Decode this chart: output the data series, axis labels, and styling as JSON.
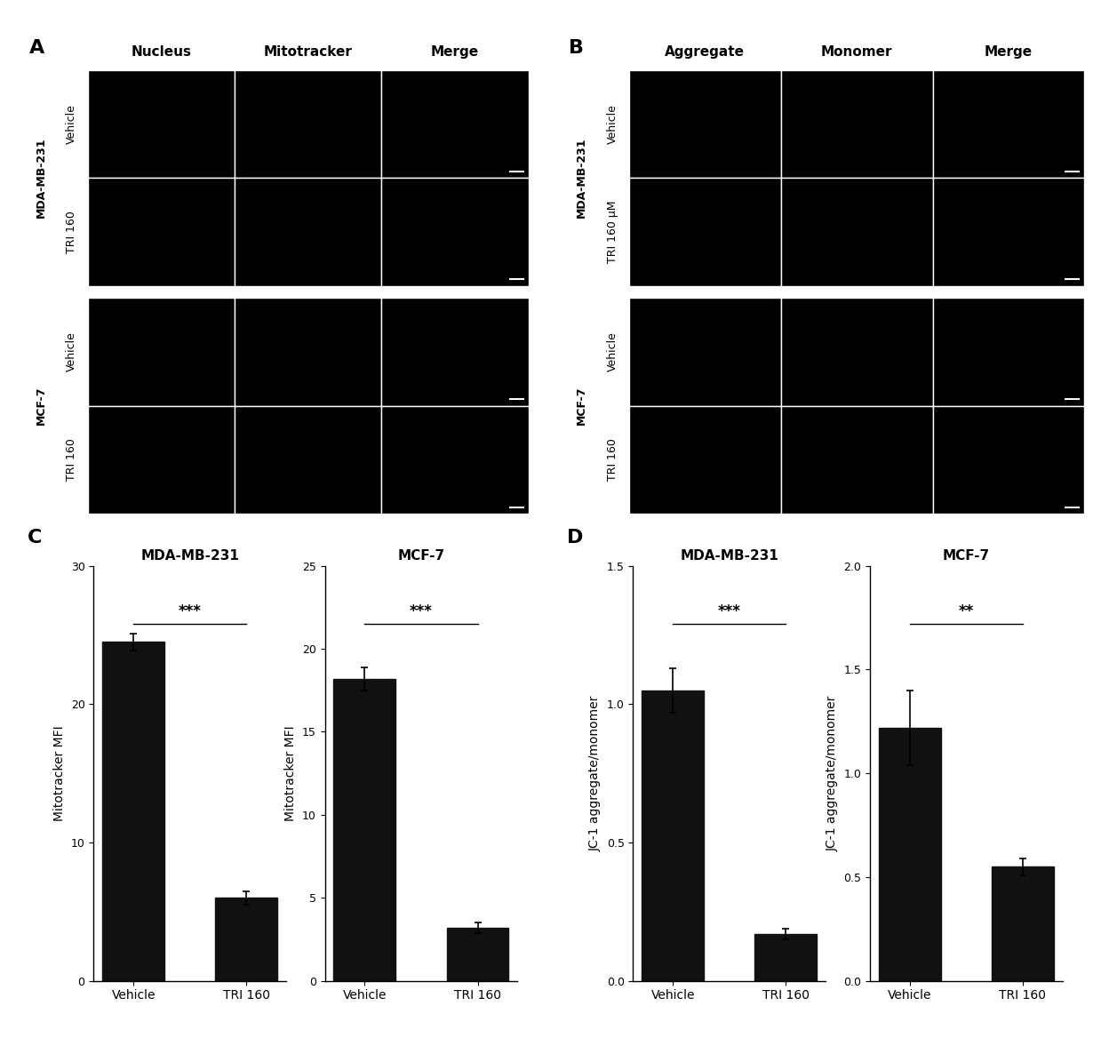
{
  "panel_A_col_labels": [
    "Nucleus",
    "Mitotracker",
    "Merge"
  ],
  "panel_A_row_groups": [
    {
      "group_label": "MDA-MB-231",
      "rows": [
        "Vehicle",
        "TRI 160"
      ]
    },
    {
      "group_label": "MCF-7",
      "rows": [
        "Vehicle",
        "TRI 160"
      ]
    }
  ],
  "panel_B_col_labels": [
    "Aggregate",
    "Monomer",
    "Merge"
  ],
  "panel_B_row_groups": [
    {
      "group_label": "MDA-MB-231",
      "rows": [
        "Vehicle",
        "TRI 160 μM"
      ]
    },
    {
      "group_label": "MCF-7",
      "rows": [
        "Vehicle",
        "TRI 160"
      ]
    }
  ],
  "panel_C_left": {
    "title": "MDA-MB-231",
    "ylabel": "Mitotracker MFI",
    "categories": [
      "Vehicle",
      "TRI 160"
    ],
    "values": [
      24.5,
      6.0
    ],
    "errors": [
      0.6,
      0.5
    ],
    "ylim": [
      0,
      30
    ],
    "yticks": [
      0,
      10,
      20,
      30
    ],
    "sig_label": "***",
    "bar_color": "#111111"
  },
  "panel_C_right": {
    "title": "MCF-7",
    "ylabel": "Mitotracker MFI",
    "categories": [
      "Vehicle",
      "TRI 160"
    ],
    "values": [
      18.2,
      3.2
    ],
    "errors": [
      0.7,
      0.3
    ],
    "ylim": [
      0,
      25
    ],
    "yticks": [
      0,
      5,
      10,
      15,
      20,
      25
    ],
    "sig_label": "***",
    "bar_color": "#111111"
  },
  "panel_D_left": {
    "title": "MDA-MB-231",
    "ylabel": "JC-1 aggregate/monomer",
    "categories": [
      "Vehicle",
      "TRI 160"
    ],
    "values": [
      1.05,
      0.17
    ],
    "errors": [
      0.08,
      0.02
    ],
    "ylim": [
      0.0,
      1.5
    ],
    "yticks": [
      0.0,
      0.5,
      1.0,
      1.5
    ],
    "sig_label": "***",
    "bar_color": "#111111"
  },
  "panel_D_right": {
    "title": "MCF-7",
    "ylabel": "JC-1 aggregate/monomer",
    "categories": [
      "Vehicle",
      "TRI 160"
    ],
    "values": [
      1.22,
      0.55
    ],
    "errors": [
      0.18,
      0.04
    ],
    "ylim": [
      0.0,
      2.0
    ],
    "yticks": [
      0.0,
      0.5,
      1.0,
      1.5,
      2.0
    ],
    "sig_label": "**",
    "bar_color": "#111111"
  },
  "background_color": "#ffffff",
  "image_bg": "#000000",
  "grid_color": "#ffffff",
  "label_color": "#000000",
  "font_size_panel_letter": 16,
  "font_size_col": 11,
  "font_size_row": 9,
  "font_size_group": 9,
  "font_size_bar_title": 11,
  "font_size_bar_axis": 10,
  "font_size_sig": 12
}
